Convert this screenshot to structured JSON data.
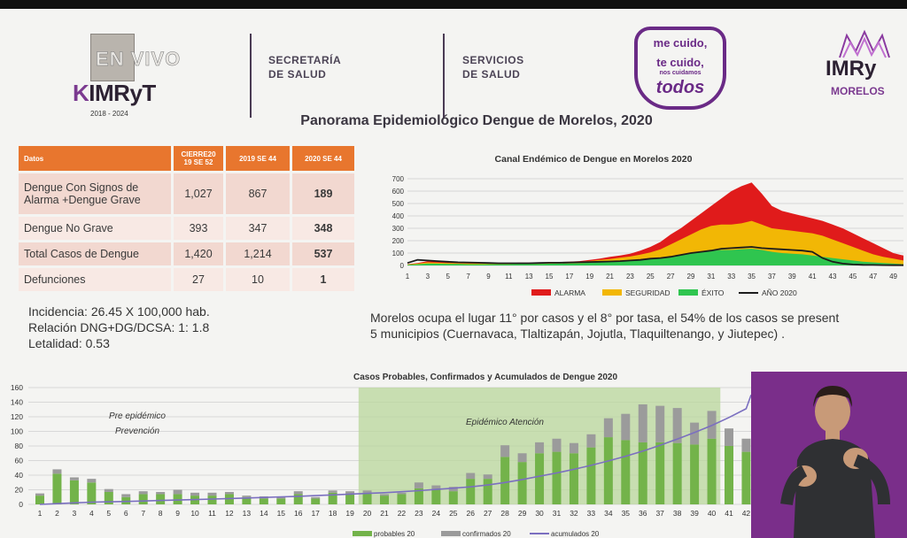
{
  "header": {
    "envivo": "EN VIVO",
    "imryt": "IMRyT",
    "imryt_k": "K",
    "imryt_years": "2018 - 2024",
    "secretaria": [
      "SECRETARÍA",
      "DE SALUD"
    ],
    "servicios": [
      "SERVICIOS",
      "DE SALUD"
    ],
    "mecuido": [
      "me cuido,",
      "te cuido,",
      "nos cuidamos",
      "todos"
    ],
    "morelos": "MORELOS",
    "imry2": "IMRy"
  },
  "title": "Panorama Epidemiológico Dengue de Morelos, 2020",
  "table": {
    "headers": [
      "Datos",
      "CIERRE20 19 SE 52",
      "2019 SE 44",
      "2020 SE 44"
    ],
    "rows": [
      {
        "label": "Dengue Con Signos de Alarma +Dengue Grave",
        "v1": "1,027",
        "v2": "867",
        "v3": "189"
      },
      {
        "label": "Dengue No Grave",
        "v1": "393",
        "v2": "347",
        "v3": "348"
      },
      {
        "label": "Total  Casos de Dengue",
        "v1": "1,420",
        "v2": "1,214",
        "v3": "537"
      },
      {
        "label": "Defunciones",
        "v1": "27",
        "v2": "10",
        "v3": "1"
      }
    ]
  },
  "stats": [
    "Incidencia: 26.45 X 100,000 hab.",
    "Relación DNG+DG/DCSA: 1: 1.8",
    "Letalidad: 0.53"
  ],
  "summary": [
    "Morelos ocupa el lugar 11° por  casos y el 8° por tasa, el 54% de los casos se present",
    "5 municipios (Cuernavaca, Tlaltizapán, Jojutla, Tlaquiltenango, y Jiutepec) ."
  ],
  "chart_data": [
    {
      "type": "area",
      "title": "Canal Endémico  de Dengue en Morelos 2020",
      "ylim": [
        0,
        700
      ],
      "yticks": [
        0,
        100,
        200,
        300,
        400,
        500,
        600,
        700
      ],
      "x": [
        1,
        2,
        3,
        4,
        5,
        6,
        7,
        8,
        9,
        10,
        11,
        12,
        13,
        14,
        15,
        16,
        17,
        18,
        19,
        20,
        21,
        22,
        23,
        24,
        25,
        26,
        27,
        28,
        29,
        30,
        31,
        32,
        33,
        34,
        35,
        36,
        37,
        38,
        39,
        40,
        41,
        42,
        43,
        44,
        45,
        46,
        47,
        48,
        49,
        50
      ],
      "xticks": [
        1,
        3,
        5,
        7,
        9,
        11,
        13,
        15,
        17,
        19,
        21,
        23,
        25,
        27,
        29,
        31,
        33,
        35,
        37,
        39,
        41,
        43,
        45,
        47,
        49
      ],
      "legend": "bottom",
      "series": [
        {
          "name": "ALARMA",
          "color": "#e01b1b",
          "values": [
            10,
            20,
            35,
            30,
            28,
            22,
            20,
            20,
            20,
            20,
            20,
            22,
            22,
            24,
            26,
            28,
            30,
            35,
            45,
            55,
            70,
            80,
            95,
            120,
            150,
            190,
            250,
            300,
            360,
            420,
            480,
            540,
            600,
            640,
            670,
            580,
            480,
            440,
            420,
            400,
            380,
            360,
            330,
            300,
            260,
            220,
            180,
            140,
            100,
            80
          ]
        },
        {
          "name": "SEGURIDAD",
          "color": "#f2b705",
          "values": [
            8,
            15,
            25,
            22,
            20,
            18,
            16,
            16,
            16,
            16,
            16,
            18,
            18,
            20,
            22,
            24,
            26,
            30,
            36,
            44,
            52,
            62,
            72,
            88,
            105,
            130,
            170,
            210,
            250,
            290,
            320,
            330,
            330,
            340,
            360,
            330,
            300,
            290,
            280,
            270,
            260,
            240,
            210,
            180,
            150,
            120,
            90,
            70,
            55,
            40
          ]
        },
        {
          "name": "ÉXITO",
          "color": "#2fc54f",
          "values": [
            5,
            10,
            15,
            14,
            12,
            12,
            10,
            10,
            10,
            10,
            10,
            12,
            12,
            12,
            14,
            16,
            16,
            18,
            22,
            26,
            30,
            34,
            38,
            42,
            50,
            60,
            70,
            85,
            100,
            110,
            120,
            125,
            125,
            130,
            135,
            125,
            110,
            100,
            95,
            90,
            80,
            70,
            60,
            50,
            40,
            30,
            25,
            20,
            15,
            10
          ]
        },
        {
          "name": "AÑO 2020",
          "color": "#1c1c1c",
          "values": [
            20,
            45,
            40,
            35,
            30,
            26,
            24,
            22,
            20,
            18,
            18,
            18,
            18,
            20,
            22,
            22,
            24,
            26,
            28,
            30,
            32,
            35,
            40,
            45,
            55,
            60,
            70,
            85,
            100,
            110,
            120,
            135,
            140,
            145,
            150,
            140,
            135,
            130,
            125,
            120,
            110,
            60,
            30,
            15,
            8,
            5,
            4,
            3,
            2,
            2
          ]
        }
      ]
    },
    {
      "type": "bar",
      "title": "Casos Probables,  Confirmados y Acumulados de Dengue 2020",
      "ylim": [
        0,
        160
      ],
      "yticks": [
        0,
        20,
        40,
        60,
        80,
        100,
        120,
        140,
        160
      ],
      "categories": [
        1,
        2,
        3,
        4,
        5,
        6,
        7,
        8,
        9,
        10,
        11,
        12,
        13,
        14,
        15,
        16,
        17,
        18,
        19,
        20,
        21,
        22,
        23,
        24,
        25,
        26,
        27,
        28,
        29,
        30,
        31,
        32,
        33,
        34,
        35,
        36,
        37,
        38,
        39,
        40,
        41,
        42
      ],
      "annotations": [
        "Pre epidémico",
        "Prevención",
        "Epidémico Atención"
      ],
      "series": [
        {
          "name": "probables 20",
          "color": "#73b34a",
          "values": [
            12,
            42,
            33,
            30,
            17,
            10,
            14,
            14,
            14,
            12,
            12,
            14,
            10,
            8,
            8,
            14,
            8,
            16,
            15,
            16,
            12,
            14,
            22,
            20,
            18,
            35,
            35,
            65,
            58,
            70,
            72,
            70,
            78,
            92,
            88,
            85,
            85,
            84,
            82,
            90,
            80,
            72
          ]
        },
        {
          "name": "confirmados 20",
          "color": "#9b9b9b",
          "values": [
            3,
            6,
            4,
            5,
            4,
            4,
            4,
            3,
            6,
            4,
            4,
            3,
            2,
            3,
            2,
            4,
            2,
            3,
            3,
            3,
            2,
            2,
            8,
            6,
            6,
            8,
            6,
            16,
            12,
            15,
            18,
            14,
            18,
            26,
            36,
            52,
            50,
            48,
            30,
            38,
            24,
            18
          ]
        },
        {
          "name": "acumulados 20",
          "color": "#7b6fc0",
          "values": [
            0,
            1,
            2,
            3,
            3.5,
            4,
            4.6,
            5.3,
            6,
            6.6,
            7.3,
            8,
            8.7,
            9.5,
            10.3,
            11,
            12,
            13,
            14,
            15,
            16,
            17.3,
            18.8,
            20.5,
            22.2,
            24,
            26.5,
            30,
            34,
            38.5,
            43,
            48,
            53.5,
            59.5,
            66,
            73,
            81,
            89.5,
            98.5,
            108,
            119,
            131
          ]
        }
      ]
    }
  ]
}
